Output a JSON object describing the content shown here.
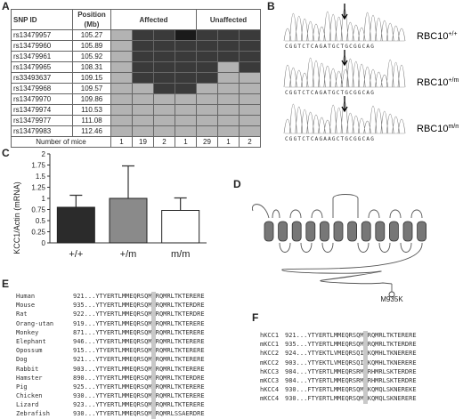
{
  "panels": {
    "a": "A",
    "b": "B",
    "c": "C",
    "d": "D",
    "e": "E",
    "f": "F"
  },
  "table_a": {
    "headers": {
      "snp": "SNP ID",
      "position": "Position (Mb)",
      "affected": "Affected",
      "unaffected": "Unaffected"
    },
    "rows": [
      {
        "id": "rs13479957",
        "pos": "105.27",
        "cells": [
          "l",
          "d",
          "d",
          "b",
          "d",
          "d",
          "d"
        ]
      },
      {
        "id": "rs13479960",
        "pos": "105.89",
        "cells": [
          "l",
          "d",
          "d",
          "d",
          "d",
          "d",
          "d"
        ]
      },
      {
        "id": "rs13479961",
        "pos": "105.92",
        "cells": [
          "l",
          "d",
          "d",
          "d",
          "d",
          "d",
          "d"
        ]
      },
      {
        "id": "rs13479965",
        "pos": "108.31",
        "cells": [
          "l",
          "d",
          "d",
          "d",
          "d",
          "l",
          "d"
        ]
      },
      {
        "id": "rs33493637",
        "pos": "109.15",
        "cells": [
          "l",
          "d",
          "d",
          "d",
          "d",
          "l",
          "l"
        ]
      },
      {
        "id": "rs13479968",
        "pos": "109.57",
        "cells": [
          "l",
          "l",
          "d",
          "d",
          "l",
          "l",
          "l"
        ]
      },
      {
        "id": "rs13479970",
        "pos": "109.86",
        "cells": [
          "l",
          "l",
          "l",
          "l",
          "l",
          "l",
          "l"
        ]
      },
      {
        "id": "rs13479974",
        "pos": "110.53",
        "cells": [
          "l",
          "l",
          "l",
          "l",
          "l",
          "l",
          "l"
        ]
      },
      {
        "id": "rs13479977",
        "pos": "111.08",
        "cells": [
          "l",
          "l",
          "l",
          "l",
          "l",
          "l",
          "l"
        ]
      },
      {
        "id": "rs13479983",
        "pos": "112.46",
        "cells": [
          "l",
          "l",
          "l",
          "l",
          "l",
          "l",
          "l"
        ]
      }
    ],
    "footer_label": "Number of mice",
    "counts": [
      "1",
      "19",
      "2",
      "1",
      "29",
      "1",
      "2"
    ]
  },
  "chromatograms": [
    {
      "seq": "CGGTCTCAGATGCTGCGGCAG",
      "label_base": "RBC10",
      "label_sup": "+/+"
    },
    {
      "seq": "CGGTCTCAGATGCTGCGGCAG",
      "label_base": "RBC10",
      "label_sup": "+/m"
    },
    {
      "seq": "CGGTCTCAGAAGCTGCGGCAG",
      "label_base": "RBC10",
      "label_sup": "m/m"
    }
  ],
  "chart_data": {
    "type": "bar",
    "categories": [
      "+/+",
      "+/m",
      "m/m"
    ],
    "values": [
      0.8,
      1.0,
      0.73
    ],
    "errors": [
      0.27,
      0.73,
      0.28
    ],
    "ylabel": "KCC1/Actin (mRNA)",
    "ylim": [
      0,
      2
    ],
    "yticks": [
      "0",
      "0.25",
      "0.5",
      "0.75",
      "1",
      "1.25",
      "1.5",
      "1.75",
      "2"
    ],
    "colors": [
      "#2b2b2b",
      "#8a8a8a",
      "#ffffff"
    ]
  },
  "topology": {
    "mutation_label": "M935K"
  },
  "alignment_e": [
    {
      "name": "Human",
      "start": "921",
      "seq": "YTYERTLMMEQRSQMLRQMRLTKTERERE"
    },
    {
      "name": "Mouse",
      "start": "935",
      "seq": "YTYERTLMMEQRSQMLRQMRLTKTERDRE"
    },
    {
      "name": "Rat",
      "start": "922",
      "seq": "YTYERTLMMEQRSQMLRQMRLTKTERDRE"
    },
    {
      "name": "Orang-utan",
      "start": "919",
      "seq": "YTYERTLMMEQRSQMLRQMRLTKTERERE"
    },
    {
      "name": "Monkey",
      "start": "871",
      "seq": "YTYERTLMMEQRSQMLRQMRLTKTERERE"
    },
    {
      "name": "Elephant",
      "start": "946",
      "seq": "YTYERTLMMEQRSQMLRQMRLTKTERERE"
    },
    {
      "name": "Opossum",
      "start": "915",
      "seq": "YTYERTLMMEQRSQMLRQMRLTKTERERE"
    },
    {
      "name": "Dog",
      "start": "921",
      "seq": "YTYERTLMMEQRSQMLRQMRLTKTERERE"
    },
    {
      "name": "Rabbit",
      "start": "903",
      "seq": "YTYERTLMMEQRSQMLRQMRLTKTERERE"
    },
    {
      "name": "Hamster",
      "start": "890",
      "seq": "YTYERTLMMEQRSQMLRQMRLTKTERDRE"
    },
    {
      "name": "Pig",
      "start": "925",
      "seq": "YTYERTLMMEQRSQMLRQMRLTKTERERE"
    },
    {
      "name": "Chicken",
      "start": "930",
      "seq": "YTYERTLMMEQRSQMLRQMRLTKTERERE"
    },
    {
      "name": "Lizard",
      "start": "923",
      "seq": "YTYERTLMMEQRSQMLRQMRLTKTERERE"
    },
    {
      "name": "Zebrafish",
      "start": "930",
      "seq": "YTYERTLMMEQRSQMLRQMRLSSAERDRE"
    }
  ],
  "alignment_f": [
    {
      "name": "hKCC1",
      "start": "921",
      "seq": "YTYERTLMMEQRSQMLRQMRLTKTERERE"
    },
    {
      "name": "mKCC1",
      "start": "935",
      "seq": "YTYERTLMMEQRSQMLRQMRLTKTERDRE"
    },
    {
      "name": "hKCC2",
      "start": "924",
      "seq": "YTYEKTLVMEQRSQILKQMHLTKNERERE"
    },
    {
      "name": "mKCC2",
      "start": "903",
      "seq": "YTYEKTLVMEQRSQILKQMHLTKNERERE"
    },
    {
      "name": "hKCC3",
      "start": "984",
      "seq": "YTYERTLMMEQRSRMLRHMRLSKTERDRE"
    },
    {
      "name": "mKCC3",
      "start": "984",
      "seq": "YTYERTLMMEQRSRMLRHMRLSKTERDRE"
    },
    {
      "name": "hKCC4",
      "start": "930",
      "seq": "FTYERTLMMEQRSQMLKQMQLSKNEREKE"
    },
    {
      "name": "mKCC4",
      "start": "930",
      "seq": "FTYERTLMMEQRSQMLKQMQLSKNERERE"
    }
  ]
}
